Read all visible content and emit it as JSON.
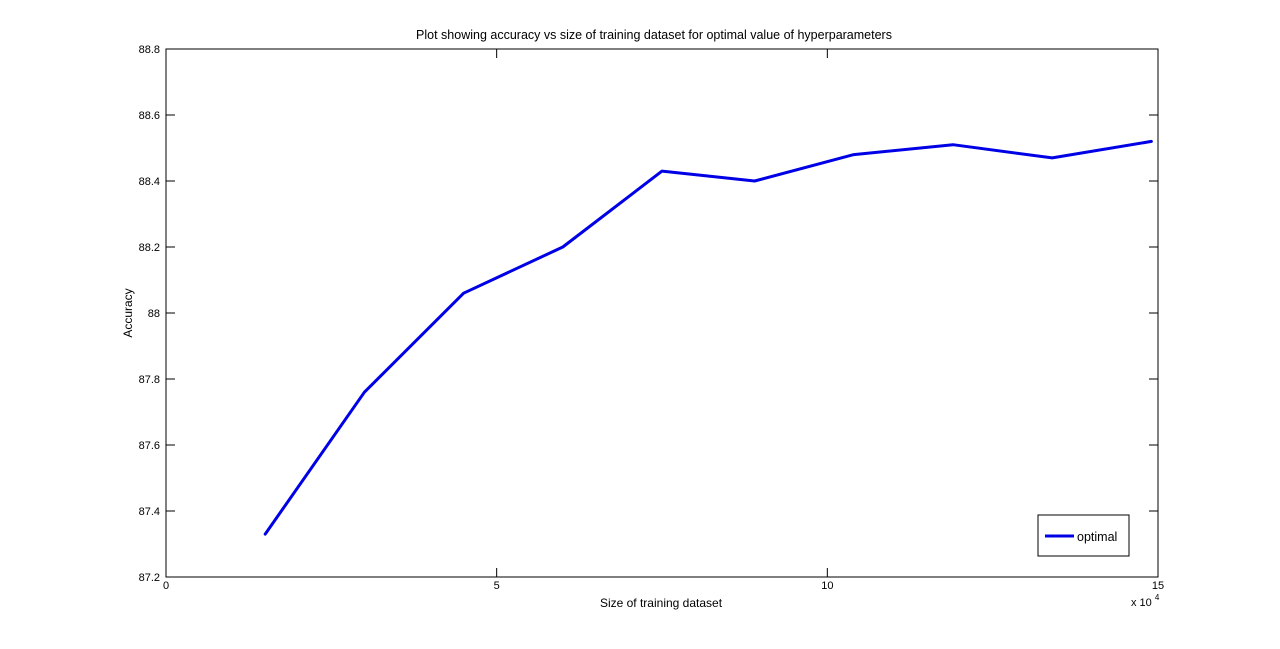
{
  "chart_data": {
    "type": "line",
    "title": "Plot showing accuracy vs size of training dataset for optimal value of hyperparameters",
    "xlabel": "Size of training dataset",
    "ylabel": "Accuracy",
    "x_multiplier_label": "x 10",
    "x_multiplier_exponent": "4",
    "xlim": [
      0,
      15
    ],
    "ylim": [
      87.2,
      88.8
    ],
    "xticks": [
      0,
      5,
      10,
      15
    ],
    "yticks": [
      87.2,
      87.4,
      87.6,
      87.8,
      88,
      88.2,
      88.4,
      88.6,
      88.8
    ],
    "xtick_labels": [
      "0",
      "5",
      "10",
      "15"
    ],
    "ytick_labels": [
      "87.2",
      "87.4",
      "87.6",
      "87.8",
      "88",
      "88.2",
      "88.4",
      "88.6",
      "88.8"
    ],
    "grid": false,
    "legend_position": "bottom-right",
    "series": [
      {
        "name": "optimal",
        "color": "#0000e6",
        "x": [
          1.5,
          3.0,
          4.5,
          6.0,
          7.5,
          8.9,
          10.4,
          11.9,
          13.4,
          14.9
        ],
        "y": [
          87.33,
          87.76,
          88.06,
          88.2,
          88.43,
          88.4,
          88.48,
          88.51,
          88.47,
          88.52
        ]
      }
    ]
  }
}
